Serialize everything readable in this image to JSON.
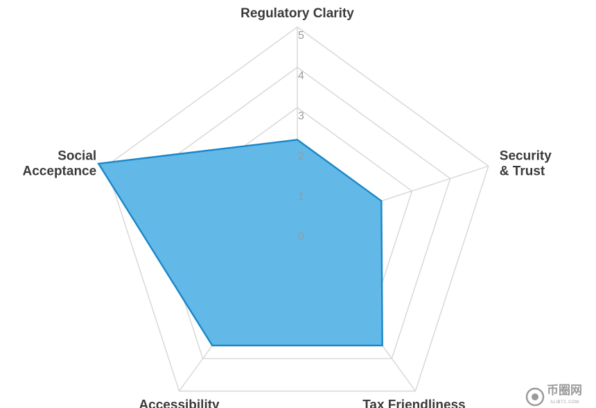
{
  "chart_data": {
    "type": "radar",
    "title": "",
    "axes": [
      {
        "label_lines": [
          "Regulatory Clarity"
        ]
      },
      {
        "label_lines": [
          "Security",
          "& Trust"
        ]
      },
      {
        "label_lines": [
          "Tax Friendliness"
        ]
      },
      {
        "label_lines": [
          "Accessibility"
        ]
      },
      {
        "label_lines": [
          "Social",
          "Acceptance"
        ]
      }
    ],
    "range": [
      0,
      5
    ],
    "ticks": [
      "0",
      "1",
      "2",
      "3",
      "4",
      "5"
    ],
    "grid": true,
    "series": [
      {
        "values": [
          2.2,
          2.2,
          3.6,
          3.6,
          5.2
        ],
        "fill": "#62b8e6",
        "stroke": "#1a86c8"
      }
    ]
  },
  "watermark": {
    "text": "币圈网",
    "subtext": "ALIBTC.COM",
    "icon": "coin-logo-icon"
  }
}
